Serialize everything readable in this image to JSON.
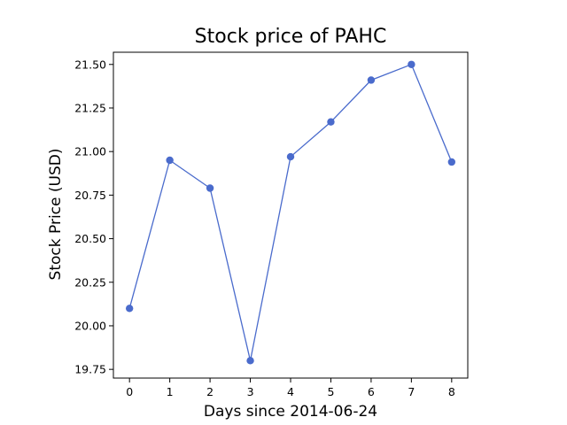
{
  "chart_data": {
    "type": "line",
    "title": "Stock price of PAHC",
    "xlabel": "Days since 2014-06-24",
    "ylabel": "Stock Price (USD)",
    "x": [
      0,
      1,
      2,
      3,
      4,
      5,
      6,
      7,
      8
    ],
    "series": [
      {
        "values": [
          20.1,
          20.95,
          20.79,
          19.8,
          20.97,
          21.17,
          21.41,
          21.5,
          20.94
        ]
      }
    ],
    "xlim": [
      -0.4,
      8.4
    ],
    "ylim": [
      19.7,
      21.57
    ],
    "xticks": [
      0,
      1,
      2,
      3,
      4,
      5,
      6,
      7,
      8
    ],
    "yticks": [
      19.75,
      20.0,
      20.25,
      20.5,
      20.75,
      21.0,
      21.25,
      21.5
    ],
    "ytick_labels": [
      "19.75",
      "20.00",
      "20.25",
      "20.50",
      "20.75",
      "21.00",
      "21.25",
      "21.50"
    ],
    "line_color": "#4a6bcc",
    "grid": false,
    "legend": "none"
  }
}
